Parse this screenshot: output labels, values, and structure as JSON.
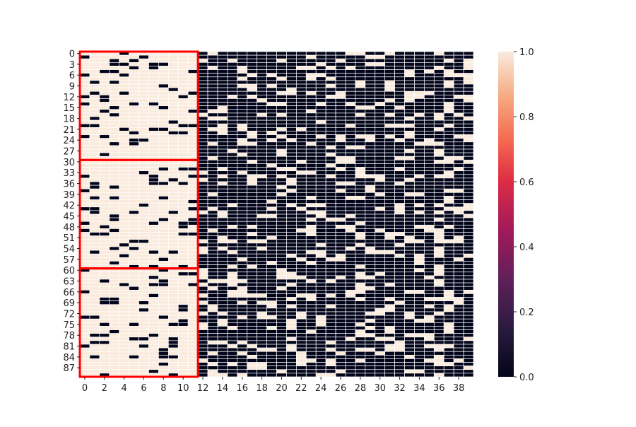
{
  "chart_data": {
    "type": "heatmap",
    "title": "",
    "xlabel": "",
    "ylabel": "",
    "n_rows": 90,
    "n_cols": 40,
    "value_range": [
      0,
      1
    ],
    "grid": false,
    "x_tick_values": [
      0,
      2,
      4,
      6,
      8,
      10,
      12,
      14,
      16,
      18,
      20,
      22,
      24,
      26,
      28,
      30,
      32,
      34,
      36,
      38
    ],
    "y_tick_values": [
      0,
      3,
      6,
      9,
      12,
      15,
      18,
      21,
      24,
      27,
      30,
      33,
      36,
      39,
      42,
      45,
      48,
      51,
      54,
      57,
      60,
      63,
      66,
      69,
      72,
      75,
      78,
      81,
      84,
      87
    ],
    "colorbar": {
      "ticks": [
        0.0,
        0.2,
        0.4,
        0.6,
        0.8,
        1.0
      ],
      "tick_labels": [
        "0.0",
        "0.2",
        "0.4",
        "0.6",
        "0.8",
        "1.0"
      ],
      "colormap": "rocket",
      "color_low": "#03051a",
      "color_high": "#faebdd"
    },
    "highlight_boxes": [
      {
        "rows": [
          0,
          29
        ],
        "cols": [
          0,
          11
        ]
      },
      {
        "rows": [
          30,
          59
        ],
        "cols": [
          0,
          11
        ]
      },
      {
        "rows": [
          60,
          89
        ],
        "cols": [
          0,
          11
        ]
      }
    ],
    "highlight_color": "#ff0000",
    "cell_border_color": "#ffffff",
    "value_pattern": "binary 0/1 cells; columns 0-11 mostly 1, columns 12-39 mostly 0",
    "left_block": {
      "cols": [
        0,
        11
      ],
      "value_1_fraction": 0.85
    },
    "right_block": {
      "cols": [
        12,
        39
      ],
      "value_1_fraction": 0.2
    },
    "seed": 12345
  }
}
